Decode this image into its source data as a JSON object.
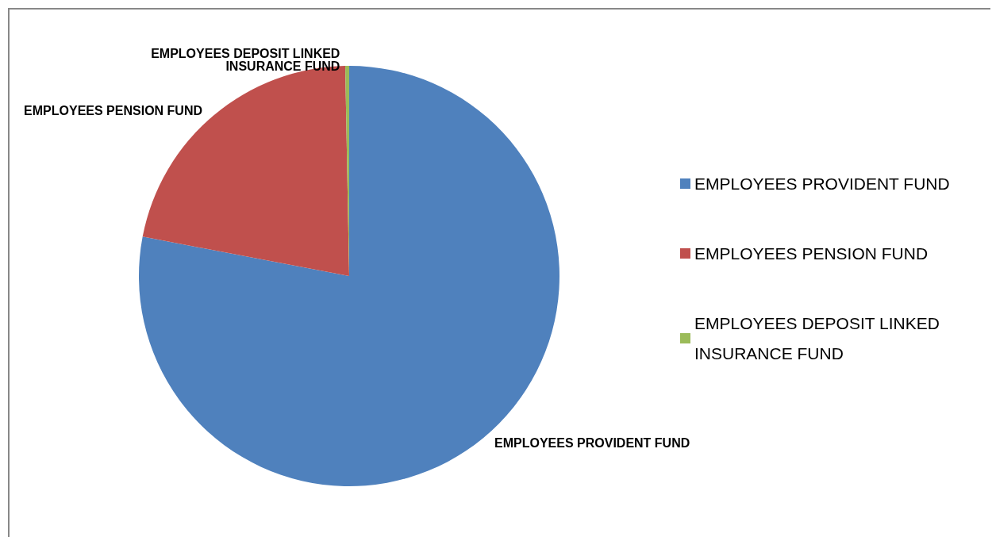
{
  "chart_data": {
    "type": "pie",
    "categories": [
      "EMPLOYEES PROVIDENT FUND",
      "EMPLOYEES PENSION FUND",
      "EMPLOYEES DEPOSIT LINKED INSURANCE FUND"
    ],
    "values": [
      78,
      21.7,
      0.3
    ],
    "colors": [
      "#4f81bd",
      "#c0504d",
      "#9bbb59"
    ],
    "legend": "right"
  }
}
